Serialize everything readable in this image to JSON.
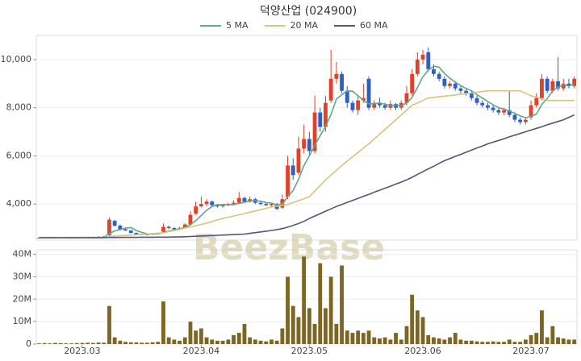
{
  "chart_data": [
    {
      "type": "candlestick",
      "title": "덕양산업 (024900)",
      "watermark": "BeezBase",
      "up_color": "#e0412a",
      "down_color": "#2f5fc4",
      "categories": [
        null,
        null,
        null,
        null,
        null,
        null,
        null,
        null,
        "2023.03",
        null,
        null,
        null,
        null,
        null,
        null,
        null,
        null,
        null,
        null,
        null,
        null,
        null,
        null,
        null,
        null,
        null,
        null,
        null,
        null,
        null,
        "2023.04",
        null,
        null,
        null,
        null,
        null,
        null,
        null,
        null,
        null,
        null,
        null,
        null,
        null,
        null,
        null,
        null,
        null,
        null,
        null,
        "2023.05",
        null,
        null,
        null,
        null,
        null,
        null,
        null,
        null,
        null,
        null,
        null,
        null,
        null,
        null,
        null,
        null,
        null,
        null,
        null,
        null,
        "2023.06",
        null,
        null,
        null,
        null,
        null,
        null,
        null,
        null,
        null,
        null,
        null,
        null,
        null,
        null,
        null,
        null,
        null,
        null,
        null,
        "2023.07",
        null,
        null,
        null,
        null,
        null,
        null,
        null,
        null
      ],
      "open": [
        2590,
        2600,
        2610,
        2600,
        2620,
        2610,
        2600,
        2590,
        2610,
        2620,
        2630,
        2620,
        2640,
        2700,
        3300,
        3100,
        2950,
        2900,
        2800,
        2750,
        2720,
        2740,
        2760,
        2850,
        3050,
        3000,
        2950,
        3000,
        3150,
        3600,
        3900,
        4000,
        4100,
        3950,
        3900,
        3950,
        4000,
        4050,
        4250,
        4100,
        4200,
        4050,
        4000,
        3950,
        4000,
        3850,
        4300,
        5600,
        5300,
        6300,
        6700,
        6200,
        7800,
        7200,
        8300,
        9200,
        9400,
        8700,
        8200,
        7900,
        8300,
        9200,
        8000,
        8200,
        8100,
        8000,
        8150,
        8000,
        8200,
        8600,
        9400,
        10000,
        10300,
        9600,
        9400,
        9200,
        8900,
        9000,
        8800,
        8700,
        8600,
        8400,
        8200,
        8100,
        8000,
        7900,
        7800,
        7900,
        7700,
        7500,
        7400,
        7600,
        8100,
        8400,
        9200,
        8700,
        9100,
        8800,
        9000,
        8900
      ],
      "high": [
        2620,
        2630,
        2630,
        2640,
        2630,
        2620,
        2610,
        2620,
        2640,
        2650,
        2650,
        2660,
        2670,
        3450,
        3350,
        3150,
        3000,
        2920,
        2820,
        2770,
        2760,
        2780,
        2820,
        3200,
        3100,
        3050,
        3050,
        3200,
        3700,
        4100,
        4300,
        4200,
        4150,
        4000,
        4000,
        4050,
        4150,
        4500,
        4300,
        4300,
        4250,
        4100,
        4050,
        4050,
        4050,
        4400,
        6000,
        5900,
        6800,
        7300,
        7000,
        8500,
        8000,
        8500,
        10400,
        9900,
        9500,
        8900,
        8300,
        8500,
        9000,
        9300,
        8300,
        8400,
        8200,
        8300,
        8200,
        8300,
        8900,
        9600,
        10300,
        10400,
        10500,
        9800,
        9500,
        9300,
        9100,
        9100,
        8900,
        8800,
        8700,
        8500,
        8300,
        8200,
        8100,
        8000,
        8000,
        8700,
        7800,
        7600,
        7600,
        8300,
        8600,
        9400,
        9300,
        9200,
        10100,
        9200,
        9200,
        9300
      ],
      "low": [
        2570,
        2580,
        2580,
        2590,
        2590,
        2580,
        2570,
        2560,
        2600,
        2600,
        2610,
        2610,
        2620,
        2680,
        3050,
        2900,
        2880,
        2780,
        2730,
        2700,
        2700,
        2720,
        2740,
        2820,
        2950,
        2920,
        2920,
        2980,
        3100,
        3550,
        3850,
        3900,
        3900,
        3850,
        3850,
        3900,
        3950,
        4000,
        4050,
        4050,
        4000,
        3950,
        3900,
        3900,
        3750,
        3800,
        4200,
        5000,
        5200,
        6100,
        6000,
        6100,
        7000,
        7000,
        8200,
        9000,
        8600,
        8000,
        7800,
        7700,
        8200,
        7900,
        7900,
        8000,
        7900,
        7900,
        7900,
        7900,
        8100,
        8500,
        9300,
        9800,
        9500,
        9300,
        9100,
        8800,
        8800,
        8700,
        8600,
        8500,
        8300,
        8100,
        8000,
        7900,
        7800,
        7700,
        7700,
        7600,
        7400,
        7300,
        7300,
        7500,
        8000,
        8300,
        8600,
        8600,
        8700,
        8700,
        8800,
        8800
      ],
      "close": [
        2600,
        2610,
        2600,
        2620,
        2610,
        2600,
        2590,
        2610,
        2620,
        2630,
        2620,
        2640,
        2650,
        3350,
        3100,
        2950,
        2900,
        2800,
        2750,
        2720,
        2740,
        2760,
        2800,
        3050,
        3000,
        2950,
        3000,
        3150,
        3550,
        3900,
        4000,
        4100,
        3950,
        3900,
        3950,
        4000,
        4050,
        4250,
        4100,
        4200,
        4050,
        4000,
        3950,
        4000,
        3800,
        4200,
        5600,
        5200,
        6300,
        6700,
        6200,
        7800,
        7200,
        8200,
        9200,
        9400,
        8700,
        8200,
        7900,
        8300,
        8400,
        8000,
        8200,
        8100,
        8000,
        8150,
        8000,
        8200,
        8600,
        9400,
        10000,
        10200,
        9600,
        9400,
        9200,
        8900,
        9000,
        8800,
        8700,
        8600,
        8400,
        8200,
        8100,
        8000,
        7900,
        7800,
        7900,
        7700,
        7500,
        7400,
        7500,
        8100,
        8400,
        9200,
        8700,
        9100,
        8800,
        9000,
        8900,
        9200
      ],
      "series": [
        {
          "name": "5 MA",
          "color": "#5fa88a",
          "values": [
            2610,
            2610,
            2610,
            2610,
            2610,
            2610,
            2610,
            2610,
            2610,
            2610,
            2610,
            2610,
            2610,
            2780,
            2880,
            2940,
            3000,
            3020,
            2900,
            2820,
            2760,
            2750,
            2760,
            2810,
            2870,
            2920,
            2970,
            3030,
            3140,
            3310,
            3520,
            3740,
            3900,
            3970,
            3980,
            3980,
            3970,
            4030,
            4070,
            4130,
            4130,
            4120,
            4060,
            4040,
            3960,
            3990,
            4310,
            4560,
            5020,
            5600,
            6000,
            6440,
            6840,
            7220,
            7720,
            8360,
            8540,
            8700,
            8680,
            8500,
            8300,
            8160,
            8160,
            8200,
            8140,
            8090,
            8090,
            8090,
            8190,
            8430,
            8840,
            9280,
            9560,
            9720,
            9680,
            9420,
            9220,
            9060,
            8920,
            8800,
            8700,
            8540,
            8400,
            8260,
            8120,
            8000,
            7940,
            7860,
            7760,
            7660,
            7580,
            7640,
            7740,
            8140,
            8380,
            8700,
            8840,
            8960,
            8900,
            9000
          ]
        },
        {
          "name": "20 MA",
          "color": "#d9c27c",
          "values": [
            2600,
            2600,
            2600,
            2600,
            2600,
            2600,
            2600,
            2600,
            2600,
            2600,
            2600,
            2600,
            2600,
            2650,
            2665,
            2680,
            2695,
            2710,
            2725,
            2740,
            2755,
            2770,
            2785,
            2800,
            2850,
            2900,
            2950,
            3000,
            3050,
            3100,
            3150,
            3210,
            3270,
            3340,
            3400,
            3450,
            3500,
            3550,
            3600,
            3660,
            3710,
            3770,
            3820,
            3880,
            3910,
            3950,
            3980,
            4060,
            4140,
            4220,
            4300,
            4530,
            4770,
            5000,
            5200,
            5400,
            5600,
            5780,
            5960,
            6140,
            6320,
            6500,
            6700,
            6900,
            7100,
            7300,
            7500,
            7700,
            7900,
            8100,
            8200,
            8300,
            8400,
            8430,
            8450,
            8480,
            8500,
            8530,
            8560,
            8590,
            8610,
            8640,
            8670,
            8700,
            8700,
            8700,
            8700,
            8700,
            8700,
            8700,
            8600,
            8500,
            8430,
            8370,
            8300,
            8300,
            8300,
            8300,
            8300,
            8300
          ]
        },
        {
          "name": "60 MA",
          "color": "#4f5878",
          "values": [
            2600,
            2600,
            2600,
            2600,
            2600,
            2600,
            2600,
            2600,
            2600,
            2600,
            2605,
            2605,
            2605,
            2610,
            2610,
            2610,
            2615,
            2615,
            2615,
            2620,
            2620,
            2620,
            2625,
            2625,
            2625,
            2630,
            2630,
            2640,
            2650,
            2660,
            2670,
            2680,
            2690,
            2700,
            2710,
            2720,
            2730,
            2740,
            2750,
            2780,
            2810,
            2840,
            2870,
            2900,
            2940,
            2980,
            3040,
            3110,
            3190,
            3280,
            3400,
            3500,
            3600,
            3700,
            3800,
            3900,
            3980,
            4070,
            4150,
            4230,
            4320,
            4400,
            4490,
            4570,
            4660,
            4740,
            4830,
            4910,
            5000,
            5110,
            5230,
            5340,
            5460,
            5570,
            5690,
            5800,
            5890,
            5980,
            6060,
            6150,
            6240,
            6330,
            6410,
            6500,
            6570,
            6640,
            6710,
            6790,
            6860,
            6930,
            7000,
            7070,
            7140,
            7210,
            7290,
            7360,
            7430,
            7500,
            7600,
            7700
          ]
        }
      ],
      "ylim": [
        2500,
        11000
      ],
      "yticks": [
        {
          "value": 4000,
          "label": "4,000"
        },
        {
          "value": 6000,
          "label": "6,000"
        },
        {
          "value": 8000,
          "label": "8,000"
        },
        {
          "value": 10000,
          "label": "10,000"
        }
      ],
      "grid": true
    },
    {
      "type": "bar",
      "color": "#7d6523",
      "values": [
        0.3,
        0.4,
        0.3,
        0.5,
        0.4,
        0.3,
        0.3,
        0.4,
        0.5,
        0.6,
        0.5,
        0.7,
        0.6,
        17,
        3,
        1.5,
        1,
        0.8,
        0.7,
        0.6,
        0.6,
        0.8,
        1,
        19,
        3,
        2,
        1.5,
        3,
        10,
        6,
        7,
        3,
        2,
        1.5,
        1.5,
        2,
        4,
        5,
        9,
        3,
        2,
        1.5,
        1.2,
        2,
        1.5,
        7,
        30,
        17,
        12,
        39,
        16,
        9,
        36,
        16,
        30,
        9,
        35,
        6,
        5,
        6,
        5,
        6,
        3,
        2.5,
        3,
        2,
        5,
        2,
        8,
        22,
        15,
        12,
        4,
        3,
        2.5,
        2,
        3,
        5,
        2,
        1.5,
        1.5,
        1.2,
        1,
        1,
        1.2,
        1,
        1,
        2,
        1,
        1,
        2,
        4,
        5,
        15,
        3,
        8,
        3,
        2.5,
        2,
        2
      ],
      "ylim": [
        0,
        42
      ],
      "yticks": [
        0,
        {
          "value": 10,
          "label": "10M"
        },
        {
          "value": 20,
          "label": "20M"
        },
        {
          "value": 30,
          "label": "30M"
        },
        {
          "value": 40,
          "label": "40M"
        }
      ],
      "grid": true
    }
  ]
}
